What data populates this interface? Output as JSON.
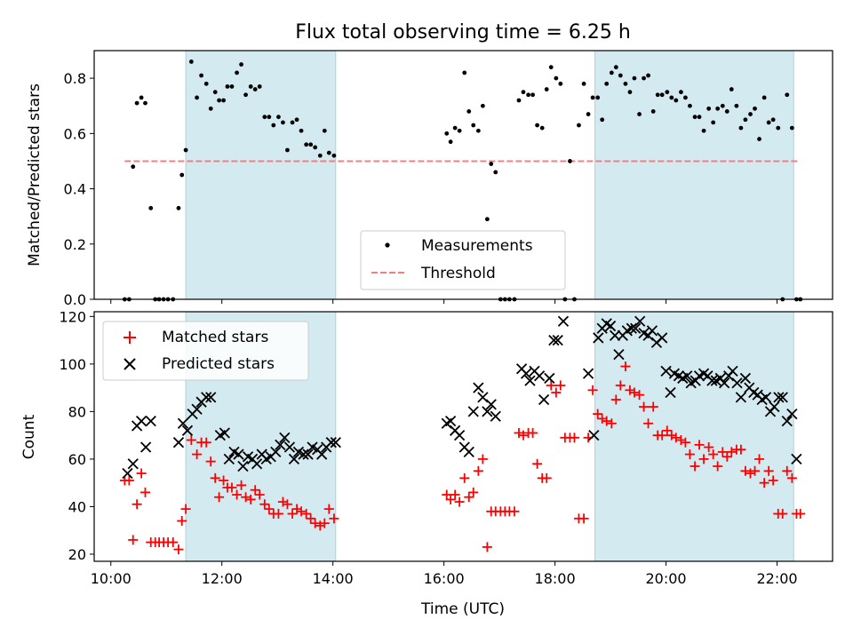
{
  "chart_data": [
    {
      "type": "scatter",
      "title": "Flux total observing time = 6.25 h",
      "ylabel": "Matched/Predicted stars",
      "xlabel": "",
      "xlim": [
        9.7,
        23.0
      ],
      "ylim": [
        0.0,
        0.9
      ],
      "yticks": [
        0.0,
        0.2,
        0.4,
        0.6,
        0.8
      ],
      "yticklabels": [
        "0.0",
        "0.2",
        "0.4",
        "0.6",
        "0.8"
      ],
      "legend_position": "bottom-center",
      "shaded_intervals": [
        [
          11.35,
          14.05
        ],
        [
          18.72,
          22.3
        ]
      ],
      "shade_color": "#d3eaf1",
      "threshold": {
        "name": "Threshold",
        "value": 0.5,
        "x_range": [
          10.25,
          22.4
        ],
        "color": "#f08080"
      },
      "series": [
        {
          "name": "Measurements",
          "color": "#000000",
          "marker": "dot",
          "x": [
            10.25,
            10.33,
            10.4,
            10.47,
            10.55,
            10.62,
            10.72,
            10.8,
            10.87,
            10.95,
            11.03,
            11.12,
            11.22,
            11.28,
            11.35,
            11.45,
            11.55,
            11.63,
            11.72,
            11.8,
            11.88,
            11.95,
            12.03,
            12.1,
            12.18,
            12.27,
            12.35,
            12.43,
            12.52,
            12.6,
            12.68,
            12.77,
            12.85,
            12.93,
            13.02,
            13.1,
            13.18,
            13.27,
            13.35,
            13.43,
            13.52,
            13.6,
            13.68,
            13.77,
            13.85,
            13.93,
            14.02,
            16.05,
            16.12,
            16.2,
            16.28,
            16.37,
            16.45,
            16.53,
            16.62,
            16.7,
            16.78,
            16.85,
            16.93,
            17.02,
            17.1,
            17.18,
            17.27,
            17.35,
            17.43,
            17.52,
            17.6,
            17.68,
            17.77,
            17.85,
            17.93,
            18.02,
            18.1,
            18.18,
            18.27,
            18.35,
            18.43,
            18.52,
            18.6,
            18.68,
            18.77,
            18.85,
            18.93,
            19.02,
            19.1,
            19.18,
            19.27,
            19.35,
            19.43,
            19.52,
            19.6,
            19.68,
            19.77,
            19.85,
            19.93,
            20.02,
            20.1,
            20.18,
            20.27,
            20.35,
            20.43,
            20.52,
            20.6,
            20.68,
            20.77,
            20.85,
            20.93,
            21.02,
            21.1,
            21.18,
            21.27,
            21.35,
            21.43,
            21.52,
            21.6,
            21.68,
            21.77,
            21.85,
            21.93,
            22.02,
            22.1,
            22.18,
            22.27,
            22.35,
            22.42
          ],
          "y": [
            0.0,
            0.0,
            0.48,
            0.71,
            0.73,
            0.71,
            0.33,
            0.0,
            0.0,
            0.0,
            0.0,
            0.0,
            0.33,
            0.45,
            0.54,
            0.86,
            0.73,
            0.81,
            0.78,
            0.69,
            0.75,
            0.72,
            0.72,
            0.77,
            0.77,
            0.82,
            0.85,
            0.74,
            0.77,
            0.76,
            0.77,
            0.66,
            0.66,
            0.63,
            0.66,
            0.64,
            0.54,
            0.64,
            0.65,
            0.61,
            0.56,
            0.56,
            0.55,
            0.52,
            0.61,
            0.53,
            0.52,
            0.6,
            0.57,
            0.62,
            0.61,
            0.82,
            0.68,
            0.63,
            0.61,
            0.7,
            0.29,
            0.49,
            0.46,
            0.0,
            0.0,
            0.0,
            0.0,
            0.72,
            0.75,
            0.74,
            0.74,
            0.63,
            0.62,
            0.76,
            0.84,
            0.8,
            0.78,
            0.0,
            0.5,
            0.0,
            0.63,
            0.78,
            0.67,
            0.73,
            0.73,
            0.65,
            0.78,
            0.82,
            0.84,
            0.81,
            0.78,
            0.75,
            0.8,
            0.67,
            0.8,
            0.81,
            0.68,
            0.74,
            0.74,
            0.75,
            0.73,
            0.72,
            0.75,
            0.73,
            0.7,
            0.66,
            0.66,
            0.61,
            0.69,
            0.64,
            0.69,
            0.7,
            0.68,
            0.76,
            0.7,
            0.62,
            0.65,
            0.67,
            0.69,
            0.58,
            0.73,
            0.64,
            0.65,
            0.62,
            0.0,
            0.74,
            0.62,
            0.0,
            0.0
          ]
        }
      ]
    },
    {
      "type": "scatter",
      "title": "",
      "ylabel": "Count",
      "xlabel": "Time (UTC)",
      "xlim": [
        9.7,
        23.0
      ],
      "ylim": [
        17,
        122
      ],
      "xticks": [
        10,
        12,
        14,
        16,
        18,
        20,
        22
      ],
      "xticklabels": [
        "10:00",
        "12:00",
        "14:00",
        "16:00",
        "18:00",
        "20:00",
        "22:00"
      ],
      "yticks": [
        20,
        40,
        60,
        80,
        100,
        120
      ],
      "yticklabels": [
        "20",
        "40",
        "60",
        "80",
        "100",
        "120"
      ],
      "legend_position": "top-left",
      "shaded_intervals": [
        [
          11.35,
          14.05
        ],
        [
          18.72,
          22.3
        ]
      ],
      "shade_color": "#d3eaf1",
      "series": [
        {
          "name": "Matched stars",
          "color": "#ff0000",
          "marker": "plus",
          "x": [
            10.25,
            10.33,
            10.4,
            10.47,
            10.55,
            10.62,
            10.72,
            10.8,
            10.87,
            10.95,
            11.03,
            11.12,
            11.22,
            11.28,
            11.35,
            11.45,
            11.55,
            11.63,
            11.72,
            11.8,
            11.88,
            11.95,
            12.03,
            12.1,
            12.18,
            12.27,
            12.35,
            12.43,
            12.52,
            12.6,
            12.68,
            12.77,
            12.85,
            12.93,
            13.02,
            13.1,
            13.18,
            13.27,
            13.35,
            13.43,
            13.52,
            13.6,
            13.68,
            13.77,
            13.85,
            13.93,
            14.02,
            16.05,
            16.12,
            16.2,
            16.28,
            16.37,
            16.45,
            16.53,
            16.62,
            16.7,
            16.78,
            16.85,
            16.93,
            17.02,
            17.1,
            17.18,
            17.27,
            17.35,
            17.43,
            17.52,
            17.6,
            17.68,
            17.77,
            17.85,
            17.93,
            18.02,
            18.1,
            18.18,
            18.27,
            18.35,
            18.43,
            18.52,
            18.6,
            18.68,
            18.77,
            18.85,
            18.93,
            19.02,
            19.1,
            19.18,
            19.27,
            19.35,
            19.43,
            19.52,
            19.6,
            19.68,
            19.77,
            19.85,
            19.93,
            20.02,
            20.1,
            20.18,
            20.27,
            20.35,
            20.43,
            20.52,
            20.6,
            20.68,
            20.77,
            20.85,
            20.93,
            21.02,
            21.1,
            21.18,
            21.27,
            21.35,
            21.43,
            21.52,
            21.6,
            21.68,
            21.77,
            21.85,
            21.93,
            22.02,
            22.1,
            22.18,
            22.27,
            22.35,
            22.42
          ],
          "y": [
            51,
            51,
            26,
            41,
            54,
            46,
            25,
            25,
            25,
            25,
            25,
            25,
            22,
            34,
            39,
            68,
            62,
            67,
            67,
            59,
            52,
            44,
            51,
            48,
            48,
            45,
            49,
            44,
            43,
            47,
            45,
            41,
            39,
            37,
            37,
            42,
            41,
            37,
            39,
            38,
            37,
            35,
            33,
            32,
            33,
            39,
            35,
            45,
            43,
            45,
            42,
            52,
            44,
            46,
            55,
            60,
            23,
            38,
            38,
            38,
            38,
            38,
            38,
            71,
            70,
            71,
            71,
            58,
            52,
            52,
            91,
            88,
            91,
            69,
            69,
            69,
            35,
            35,
            69,
            89,
            79,
            77,
            76,
            75,
            85,
            91,
            99,
            89,
            88,
            87,
            82,
            75,
            82,
            70,
            70,
            72,
            70,
            69,
            68,
            67,
            62,
            57,
            66,
            60,
            65,
            62,
            57,
            63,
            61,
            63,
            64,
            64,
            55,
            54,
            55,
            60,
            50,
            55,
            51,
            37,
            37,
            55,
            52,
            37,
            37
          ],
          "x_display_note": ""
        },
        {
          "name": "Predicted stars",
          "color": "#000000",
          "marker": "x",
          "x": [
            10.3,
            10.4,
            10.47,
            10.55,
            10.63,
            10.72,
            11.22,
            11.3,
            11.38,
            11.47,
            11.55,
            11.63,
            11.72,
            11.8,
            11.97,
            12.05,
            12.13,
            12.22,
            12.3,
            12.38,
            12.47,
            12.55,
            12.63,
            12.72,
            12.8,
            12.88,
            12.97,
            13.05,
            13.13,
            13.22,
            13.3,
            13.38,
            13.47,
            13.55,
            13.63,
            13.72,
            13.8,
            13.88,
            13.97,
            14.05,
            16.05,
            16.12,
            16.2,
            16.28,
            16.37,
            16.45,
            16.53,
            16.62,
            16.7,
            16.78,
            16.85,
            16.93,
            17.4,
            17.48,
            17.55,
            17.63,
            17.72,
            17.8,
            17.9,
            17.98,
            18.05,
            18.15,
            18.6,
            18.7,
            18.78,
            18.85,
            18.93,
            19.0,
            19.08,
            19.15,
            19.22,
            19.3,
            19.38,
            19.45,
            19.53,
            19.6,
            19.68,
            19.75,
            19.83,
            19.93,
            20.0,
            20.08,
            20.15,
            20.23,
            20.3,
            20.38,
            20.45,
            20.53,
            20.6,
            20.68,
            20.75,
            20.83,
            20.9,
            20.98,
            21.05,
            21.13,
            21.2,
            21.28,
            21.35,
            21.43,
            21.5,
            21.58,
            21.65,
            21.73,
            21.8,
            21.88,
            21.95,
            22.03,
            22.1,
            22.18,
            22.27,
            22.35
          ],
          "y": [
            54,
            58,
            74,
            76,
            65,
            76,
            67,
            75,
            72,
            79,
            81,
            84,
            86,
            86,
            70,
            71,
            60,
            63,
            62,
            57,
            61,
            60,
            58,
            62,
            60,
            61,
            63,
            66,
            69,
            65,
            60,
            63,
            62,
            62,
            65,
            64,
            62,
            65,
            67,
            67,
            75,
            76,
            72,
            70,
            65,
            63,
            80,
            90,
            86,
            80,
            83,
            78,
            98,
            96,
            93,
            97,
            95,
            85,
            94,
            110,
            110,
            118,
            96,
            70,
            111,
            115,
            117,
            116,
            112,
            104,
            112,
            114,
            115,
            115,
            118,
            113,
            112,
            114,
            109,
            111,
            97,
            88,
            96,
            95,
            94,
            95,
            92,
            93,
            95,
            96,
            95,
            93,
            93,
            94,
            92,
            95,
            97,
            92,
            86,
            94,
            90,
            88,
            87,
            85,
            86,
            80,
            82,
            86,
            86,
            76,
            79,
            60
          ]
        }
      ]
    }
  ]
}
